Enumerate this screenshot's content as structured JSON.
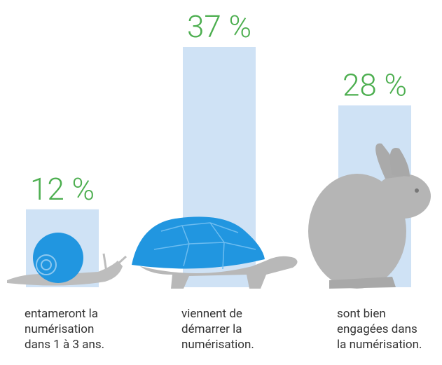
{
  "chart_data": {
    "type": "bar",
    "categories": [
      [
        "entameront la",
        "numérisation",
        "dans 1 à 3 ans."
      ],
      [
        "viennent de",
        "démarrer la",
        "numérisation."
      ],
      [
        "sont bien",
        "engagées dans",
        "la numérisation."
      ]
    ],
    "values": [
      12,
      37,
      28
    ],
    "value_labels": [
      "12 %",
      "37 %",
      "28 %"
    ],
    "color": "#cfe2f5",
    "label_color": "#4cae4f"
  }
}
